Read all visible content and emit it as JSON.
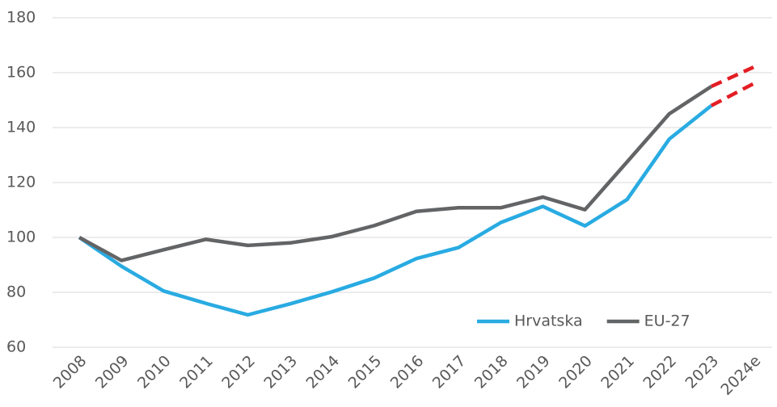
{
  "chart_data": {
    "type": "line",
    "categories": [
      "2008",
      "2009",
      "2010",
      "2011",
      "2012",
      "2013",
      "2014",
      "2015",
      "2016",
      "2017",
      "2018",
      "2019",
      "2020",
      "2021",
      "2022",
      "2023",
      "2024e"
    ],
    "series": [
      {
        "name": "Hrvatska",
        "color": "#29abe2",
        "values": [
          100,
          89.5,
          80.5,
          76,
          71.8,
          75.8,
          80.2,
          85.2,
          92.3,
          96.3,
          105.4,
          111.3,
          104.2,
          113.8,
          135.8,
          148,
          156
        ]
      },
      {
        "name": "EU-27",
        "color": "#636466",
        "values": [
          100,
          91.6,
          95.5,
          99.3,
          97.1,
          98,
          100.3,
          104.3,
          109.5,
          110.8,
          110.8,
          114.7,
          110.1,
          127.5,
          145,
          155,
          162
        ]
      }
    ],
    "forecast_start": "2023",
    "forecast_color": "#e31e24",
    "ylim": [
      60,
      180
    ],
    "yticks": [
      60,
      80,
      100,
      120,
      140,
      160,
      180
    ],
    "grid": true,
    "legend": "bottom-right"
  }
}
